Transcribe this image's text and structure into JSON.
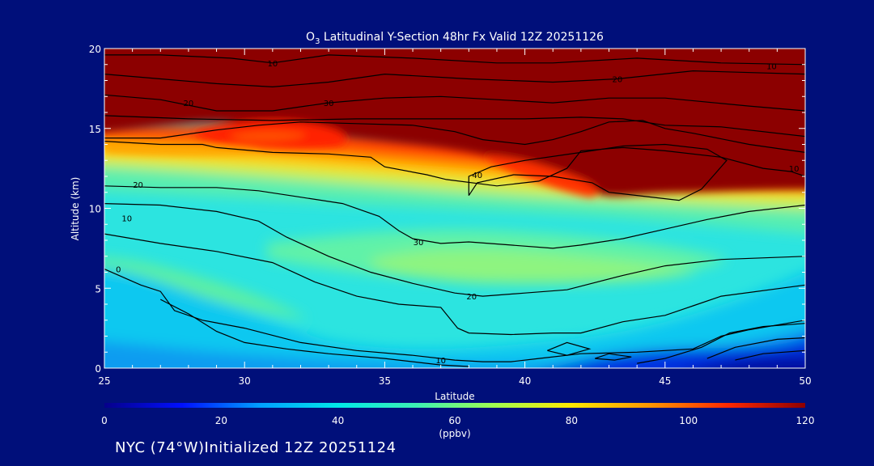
{
  "chart_data": {
    "type": "heatmap",
    "title_prefix": "O",
    "title_subscript": "3",
    "title_rest": " Latitudinal Y-Section 48hr  Fx Valid 12Z 20251126",
    "xlabel": "Latitude",
    "ylabel": "Altitude (km)",
    "xlim": [
      25,
      50
    ],
    "ylim": [
      0,
      20
    ],
    "xticks": [
      25,
      30,
      35,
      40,
      45,
      50
    ],
    "yticks": [
      0,
      5,
      10,
      15,
      20
    ],
    "colorbar": {
      "label": "(ppbv)",
      "range": [
        0,
        120
      ],
      "ticks": [
        0,
        20,
        40,
        60,
        80,
        100,
        120
      ],
      "colors": [
        "#06008a",
        "#0010ff",
        "#00a0ff",
        "#00e8e8",
        "#3cf0b4",
        "#a0ff50",
        "#ffe800",
        "#ff9600",
        "#ff2800",
        "#8c0000"
      ]
    },
    "contour_labels": [
      {
        "text": "10",
        "lat": 31.0,
        "alt": 19.1
      },
      {
        "text": "20",
        "lat": 28.0,
        "alt": 16.6
      },
      {
        "text": "30",
        "lat": 33.0,
        "alt": 16.6
      },
      {
        "text": "20",
        "lat": 43.3,
        "alt": 18.1
      },
      {
        "text": "10",
        "lat": 48.8,
        "alt": 18.9
      },
      {
        "text": "10",
        "lat": 49.6,
        "alt": 12.5
      },
      {
        "text": "40",
        "lat": 38.3,
        "alt": 12.1
      },
      {
        "text": "20",
        "lat": 26.2,
        "alt": 11.5
      },
      {
        "text": "10",
        "lat": 25.8,
        "alt": 9.4
      },
      {
        "text": "30",
        "lat": 36.2,
        "alt": 7.9
      },
      {
        "text": "0",
        "lat": 25.5,
        "alt": 6.2
      },
      {
        "text": "20",
        "lat": 38.1,
        "alt": 4.5
      },
      {
        "text": "10",
        "lat": 37.0,
        "alt": 0.5
      }
    ],
    "contours": [
      [
        [
          25,
          19.6
        ],
        [
          27,
          19.6
        ],
        [
          29.5,
          19.4
        ],
        [
          31,
          19.1
        ],
        [
          33,
          19.6
        ],
        [
          36,
          19.4
        ],
        [
          39,
          19.1
        ],
        [
          41,
          19.1
        ],
        [
          44,
          19.4
        ],
        [
          47,
          19.1
        ],
        [
          50,
          19.0
        ]
      ],
      [
        [
          25,
          18.4
        ],
        [
          27,
          18.1
        ],
        [
          29,
          17.8
        ],
        [
          31,
          17.6
        ],
        [
          33,
          17.9
        ],
        [
          35,
          18.4
        ],
        [
          38,
          18.1
        ],
        [
          41,
          17.9
        ],
        [
          43.3,
          18.1
        ],
        [
          46,
          18.6
        ],
        [
          50,
          18.4
        ]
      ],
      [
        [
          25,
          17.1
        ],
        [
          27,
          16.8
        ],
        [
          29,
          16.1
        ],
        [
          31,
          16.1
        ],
        [
          33,
          16.6
        ],
        [
          35,
          16.9
        ],
        [
          37,
          17.0
        ],
        [
          39,
          16.8
        ],
        [
          41,
          16.6
        ],
        [
          43,
          16.9
        ],
        [
          45,
          16.9
        ],
        [
          48,
          16.4
        ],
        [
          50,
          16.1
        ]
      ],
      [
        [
          25,
          15.8
        ],
        [
          28,
          15.6
        ],
        [
          31,
          15.5
        ],
        [
          34,
          15.6
        ],
        [
          37,
          15.6
        ],
        [
          40,
          15.6
        ],
        [
          42,
          15.7
        ],
        [
          43.5,
          15.6
        ],
        [
          45,
          15.2
        ],
        [
          47,
          15.1
        ],
        [
          50,
          14.5
        ]
      ],
      [
        [
          25,
          14.4
        ],
        [
          27,
          14.4
        ],
        [
          29,
          14.9
        ],
        [
          30.5,
          15.2
        ],
        [
          32,
          15.4
        ],
        [
          34,
          15.3
        ],
        [
          36,
          15.2
        ],
        [
          37.5,
          14.8
        ],
        [
          38.5,
          14.3
        ],
        [
          40,
          14.0
        ],
        [
          41,
          14.3
        ],
        [
          42,
          14.8
        ],
        [
          43,
          15.4
        ],
        [
          44.2,
          15.5
        ],
        [
          45,
          15.0
        ],
        [
          46,
          14.7
        ],
        [
          48,
          14.0
        ],
        [
          50,
          13.5
        ]
      ],
      [
        [
          25,
          14.2
        ],
        [
          27,
          14.0
        ],
        [
          28.5,
          14.0
        ],
        [
          29,
          13.8
        ],
        [
          31,
          13.5
        ],
        [
          33,
          13.4
        ],
        [
          34.5,
          13.2
        ],
        [
          35,
          12.6
        ],
        [
          36.5,
          12.1
        ],
        [
          37.2,
          11.8
        ],
        [
          39,
          11.4
        ],
        [
          40.5,
          11.7
        ],
        [
          41.5,
          12.5
        ],
        [
          42,
          13.6
        ],
        [
          43.5,
          13.8
        ],
        [
          45,
          13.6
        ],
        [
          47,
          13.2
        ],
        [
          48.5,
          12.5
        ],
        [
          49.5,
          12.3
        ],
        [
          50,
          12.0
        ]
      ],
      [
        [
          38,
          10.8
        ],
        [
          38.3,
          11.6
        ],
        [
          39.6,
          12.1
        ],
        [
          41.0,
          12.0
        ],
        [
          42.4,
          11.6
        ],
        [
          43.0,
          11.0
        ],
        [
          45.5,
          10.5
        ],
        [
          46.3,
          11.2
        ],
        [
          46.8,
          12.2
        ],
        [
          47.2,
          13.0
        ],
        [
          46.5,
          13.7
        ],
        [
          45,
          14.0
        ],
        [
          43.5,
          13.9
        ],
        [
          42,
          13.5
        ],
        [
          40,
          13.0
        ],
        [
          38.8,
          12.6
        ],
        [
          38,
          12.0
        ],
        [
          38,
          10.8
        ]
      ],
      [
        [
          25,
          11.4
        ],
        [
          27,
          11.3
        ],
        [
          29,
          11.3
        ],
        [
          30.5,
          11.1
        ],
        [
          32,
          10.7
        ],
        [
          33.5,
          10.3
        ],
        [
          34.8,
          9.5
        ],
        [
          35.5,
          8.6
        ],
        [
          36,
          8.1
        ],
        [
          37,
          7.8
        ],
        [
          38,
          7.9
        ],
        [
          39.5,
          7.7
        ],
        [
          41,
          7.5
        ],
        [
          42,
          7.7
        ],
        [
          43.5,
          8.1
        ],
        [
          45,
          8.7
        ],
        [
          46.5,
          9.3
        ],
        [
          48,
          9.8
        ],
        [
          50,
          10.2
        ]
      ],
      [
        [
          25,
          10.3
        ],
        [
          27,
          10.2
        ],
        [
          29,
          9.8
        ],
        [
          30.5,
          9.2
        ],
        [
          31.5,
          8.2
        ],
        [
          33,
          7.0
        ],
        [
          34.5,
          6.0
        ],
        [
          36,
          5.3
        ],
        [
          37.5,
          4.7
        ],
        [
          38.5,
          4.5
        ],
        [
          40,
          4.7
        ],
        [
          41.5,
          4.9
        ],
        [
          43.5,
          5.8
        ],
        [
          45,
          6.4
        ],
        [
          47,
          6.8
        ],
        [
          50,
          7.0
        ]
      ],
      [
        [
          25,
          8.4
        ],
        [
          27,
          7.8
        ],
        [
          29,
          7.3
        ],
        [
          31,
          6.6
        ],
        [
          32.5,
          5.4
        ],
        [
          34,
          4.5
        ],
        [
          35.5,
          4.0
        ],
        [
          37,
          3.8
        ],
        [
          37.6,
          2.5
        ],
        [
          38,
          2.2
        ],
        [
          39.5,
          2.1
        ],
        [
          41,
          2.2
        ],
        [
          42,
          2.2
        ],
        [
          43.5,
          2.9
        ],
        [
          45,
          3.3
        ],
        [
          46,
          3.9
        ],
        [
          47,
          4.5
        ],
        [
          50,
          5.2
        ]
      ],
      [
        [
          25,
          6.2
        ],
        [
          26.3,
          5.2
        ],
        [
          27,
          4.8
        ],
        [
          27.5,
          3.6
        ],
        [
          28.5,
          3.0
        ],
        [
          30,
          2.5
        ],
        [
          32,
          1.6
        ],
        [
          34,
          1.1
        ],
        [
          36,
          0.8
        ],
        [
          37.5,
          0.5
        ],
        [
          38.5,
          0.4
        ],
        [
          39.5,
          0.4
        ],
        [
          40.5,
          0.6
        ],
        [
          42,
          0.9
        ],
        [
          44,
          1.0
        ],
        [
          46,
          1.2
        ],
        [
          47,
          2.0
        ],
        [
          48,
          2.4
        ],
        [
          50,
          3.0
        ]
      ],
      [
        [
          27,
          4.3
        ],
        [
          28,
          3.4
        ],
        [
          29,
          2.3
        ],
        [
          30,
          1.6
        ],
        [
          31.5,
          1.2
        ],
        [
          33,
          0.9
        ],
        [
          35,
          0.6
        ],
        [
          37,
          0.2
        ],
        [
          38,
          0.1
        ]
      ],
      [
        [
          44,
          0.3
        ],
        [
          45,
          0.6
        ],
        [
          46.3,
          1.3
        ],
        [
          47.3,
          2.2
        ],
        [
          48.5,
          2.6
        ],
        [
          50,
          2.8
        ]
      ],
      [
        [
          40.8,
          1.1
        ],
        [
          41.5,
          1.6
        ],
        [
          42.3,
          1.2
        ],
        [
          41.5,
          0.8
        ],
        [
          40.8,
          1.1
        ]
      ],
      [
        [
          42.5,
          0.6
        ],
        [
          43,
          0.9
        ],
        [
          43.8,
          0.7
        ],
        [
          43.2,
          0.5
        ],
        [
          42.5,
          0.6
        ]
      ],
      [
        [
          46.5,
          0.6
        ],
        [
          47.5,
          1.3
        ],
        [
          49,
          1.8
        ],
        [
          50,
          1.9
        ]
      ],
      [
        [
          47.5,
          0.5
        ],
        [
          48.5,
          0.9
        ],
        [
          50,
          1.1
        ]
      ]
    ]
  },
  "footer_text": "NYC (74°W)Initialized 12Z 20251124"
}
